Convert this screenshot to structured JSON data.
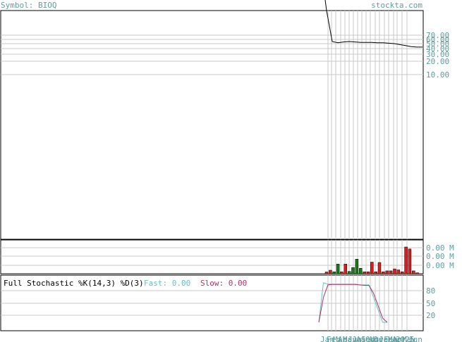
{
  "header": {
    "symbol_label": "Symbol: BIOQ",
    "site_label": "stockta.com"
  },
  "colors": {
    "accent_teal": "#5f9ea0",
    "price_line": "#000000",
    "grid": "#c8c8c8",
    "volume_up": "#1a7a1a",
    "volume_down": "#d42020",
    "stoch_fast": "#66c2c2",
    "stoch_slow": "#b0306a"
  },
  "chart_data": [
    {
      "type": "line",
      "panel": "price",
      "y_ticks": [
        "60.00",
        "50.00",
        "40.00",
        "30.00",
        "20.00",
        "10.00"
      ],
      "y_ticks_overlap": [
        "70.00"
      ],
      "y_scale": "log",
      "ylim": [
        0.0,
        60.0
      ],
      "grid": true,
      "series": [
        {
          "values": [
            90.0,
            55.0,
            52.0,
            54.0,
            55.0,
            54.0,
            53.0,
            53.0,
            53.0,
            52.0,
            52.0,
            51.0,
            50.0,
            48.0,
            46.0,
            44.0,
            43.0,
            43.0
          ]
        }
      ]
    },
    {
      "type": "bar",
      "panel": "volume",
      "y_ticks": [
        "0.00 M",
        "0.00 M",
        "0.00 M"
      ],
      "grid": true,
      "values": [
        0.09,
        0.18,
        0.1,
        0.5,
        0.1,
        0.5,
        0.12,
        0.32,
        0.75,
        0.28,
        0.1,
        0.1,
        0.6,
        0.1,
        0.58,
        0.1,
        0.15,
        0.15,
        0.25,
        0.2,
        0.1,
        1.38,
        1.28,
        0.15,
        0.05
      ],
      "colors": [
        "down",
        "down",
        "up",
        "up",
        "down",
        "down",
        "up",
        "up",
        "up",
        "up",
        "down",
        "down",
        "down",
        "down",
        "down",
        "down",
        "down",
        "down",
        "down",
        "down",
        "down",
        "down",
        "down",
        "down",
        "down"
      ]
    },
    {
      "type": "line",
      "panel": "stochastic",
      "title": "Full Stochastic %K(14,3) %D(3)",
      "legend": [
        {
          "label": "Fast: 0.00",
          "color": "#66c2c2"
        },
        {
          "label": "Slow: 0.00",
          "color": "#b0306a"
        }
      ],
      "y_ticks": [
        "80",
        "50",
        "20"
      ],
      "ylim": [
        0,
        100
      ],
      "grid": true,
      "series": [
        {
          "name": "Fast",
          "values": [
            0,
            95,
            92,
            92,
            92,
            92,
            92,
            92,
            92,
            90,
            90,
            90,
            60,
            30,
            0,
            0
          ]
        },
        {
          "name": "Slow",
          "values": [
            0,
            60,
            90,
            91,
            91,
            91,
            91,
            91,
            91,
            90,
            89,
            89,
            70,
            40,
            10,
            0
          ]
        }
      ]
    }
  ],
  "x_axis": {
    "month_labels": [
      "Jan",
      "Feb",
      "Mar",
      "Apr",
      "May",
      "Jun",
      "Jul",
      "Aug",
      "Sep",
      "Oct",
      "Nov",
      "Dec",
      "Jan",
      "Feb",
      "Mar",
      "Apr",
      "2025",
      "May",
      "Jun"
    ]
  }
}
